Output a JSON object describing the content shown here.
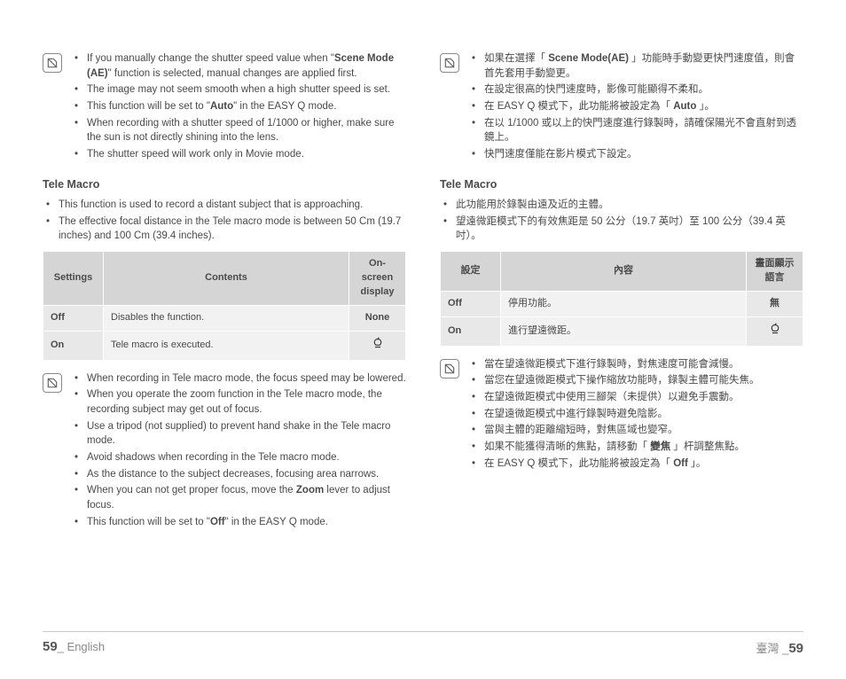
{
  "left": {
    "box1": [
      "If you manually change the shutter speed value when \"<b>Scene Mode (AE)</b>\" function is selected, manual changes are applied first.",
      "The image may not seem smooth when a high shutter speed is set.",
      "This function will be set to \"<b>Auto</b>\" in the EASY Q mode.",
      "When recording with a shutter speed of 1/1000 or higher, make sure the sun is not directly shining into the lens.",
      "The shutter speed will work only in Movie mode."
    ],
    "section": "Tele Macro",
    "intro": [
      "This function is used to record a distant subject that is approaching.",
      "The effective focal distance in the Tele macro mode is between 50 Cm (19.7 inches) and 100 Cm (39.4 inches)."
    ],
    "headers": [
      "Settings",
      "Contents",
      "On-screen display"
    ],
    "rows": [
      [
        "Off",
        "Disables the function.",
        "None"
      ],
      [
        "On",
        "Tele macro is executed.",
        "__ICON__"
      ]
    ],
    "box2": [
      "When recording in Tele macro mode, the focus speed may be lowered.",
      "When you operate the zoom function in the Tele macro mode, the recording subject may get out of focus.",
      "Use a tripod (not supplied) to prevent hand shake in the Tele macro mode.",
      "Avoid shadows when recording in the Tele macro mode.",
      "As the distance to the subject decreases, focusing area narrows.",
      "When you can not get proper focus, move the <b>Zoom</b> lever to adjust focus.",
      "This function will be set to \"<b>Off</b>\" in the EASY Q mode."
    ]
  },
  "right": {
    "box1": [
      "如果在選擇「 <b>Scene Mode(AE)</b> 」功能時手動變更快門速度值，則會首先套用手動變更。",
      "在設定很高的快門速度時，影像可能顯得不柔和。",
      "在 EASY Q 模式下，此功能將被設定為「 <b>Auto</b> 」。",
      "在以 1/1000 或以上的快門速度進行錄製時，請確保陽光不會直射到透鏡上。",
      "快門速度僅能在影片模式下設定。"
    ],
    "section": "Tele Macro",
    "intro": [
      "此功能用於錄製由遠及近的主體。",
      "望遠微距模式下的有效焦距是 50 公分（19.7 英吋）至 100 公分（39.4 英吋）。"
    ],
    "headers": [
      "設定",
      "內容",
      "畫面顯示語言"
    ],
    "rows": [
      [
        "Off",
        "停用功能。",
        "無"
      ],
      [
        "On",
        "進行望遠微距。",
        "__ICON__"
      ]
    ],
    "box2": [
      "當在望遠微距模式下進行錄製時，對焦速度可能會減慢。",
      "當您在望遠微距模式下操作縮放功能時，錄製主體可能失焦。",
      "在望遠微距模式中使用三腳架（未提供）以避免手震動。",
      "在望遠微距模式中進行錄製時避免陰影。",
      "當與主體的距離縮短時，對焦區域也變窄。",
      "如果不能獲得清晰的焦點，請移動「 <b>變焦</b> 」杆調整焦點。",
      "在 EASY Q 模式下，此功能將被設定為「 <b>Off</b> 」。"
    ]
  },
  "footer": {
    "lnum": "59",
    "llabel": "_ English",
    "rlabel": "臺灣 _",
    "rnum": "59"
  }
}
